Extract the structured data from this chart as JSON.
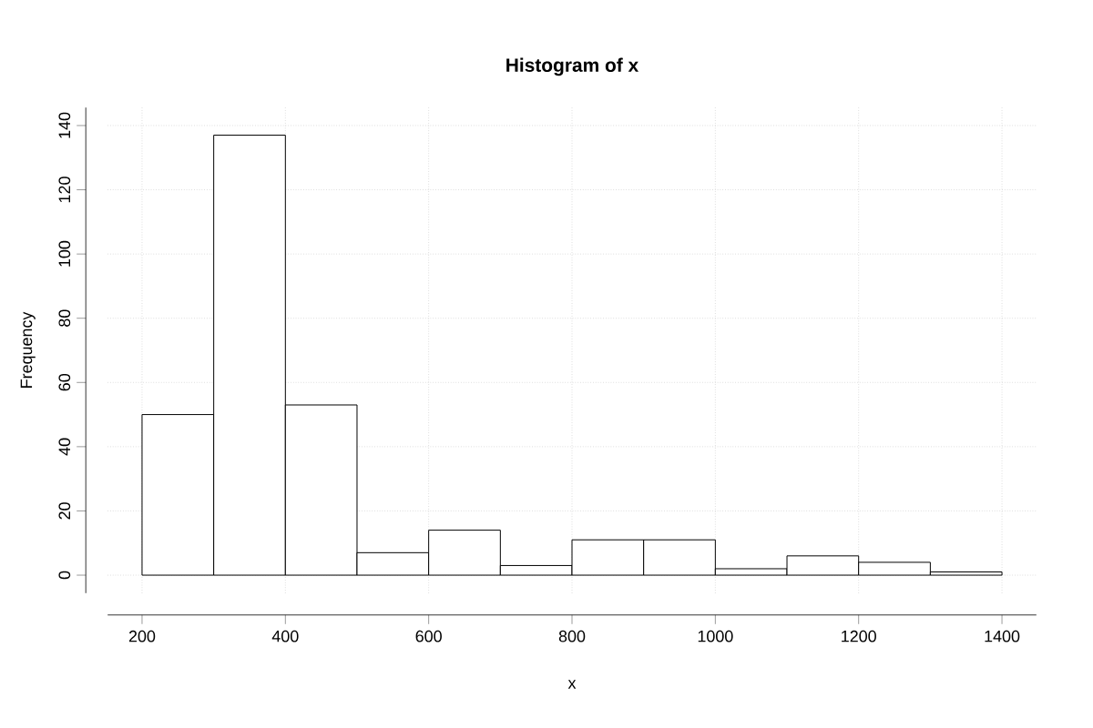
{
  "chart_data": {
    "type": "histogram",
    "title": "Histogram of x",
    "xlabel": "x",
    "ylabel": "Frequency",
    "bins": [
      200,
      300,
      400,
      500,
      600,
      700,
      800,
      900,
      1000,
      1100,
      1200,
      1300,
      1400
    ],
    "values": [
      50,
      137,
      53,
      7,
      14,
      3,
      11,
      11,
      2,
      6,
      4,
      1
    ],
    "color": "#ffffff",
    "xlim": [
      152,
      1448
    ],
    "ylim": [
      -5.6,
      145.6
    ],
    "xticks": [
      200,
      400,
      600,
      800,
      1000,
      1200,
      1400
    ],
    "yticks": [
      0,
      20,
      40,
      60,
      80,
      100,
      120,
      140
    ],
    "grid": true
  }
}
